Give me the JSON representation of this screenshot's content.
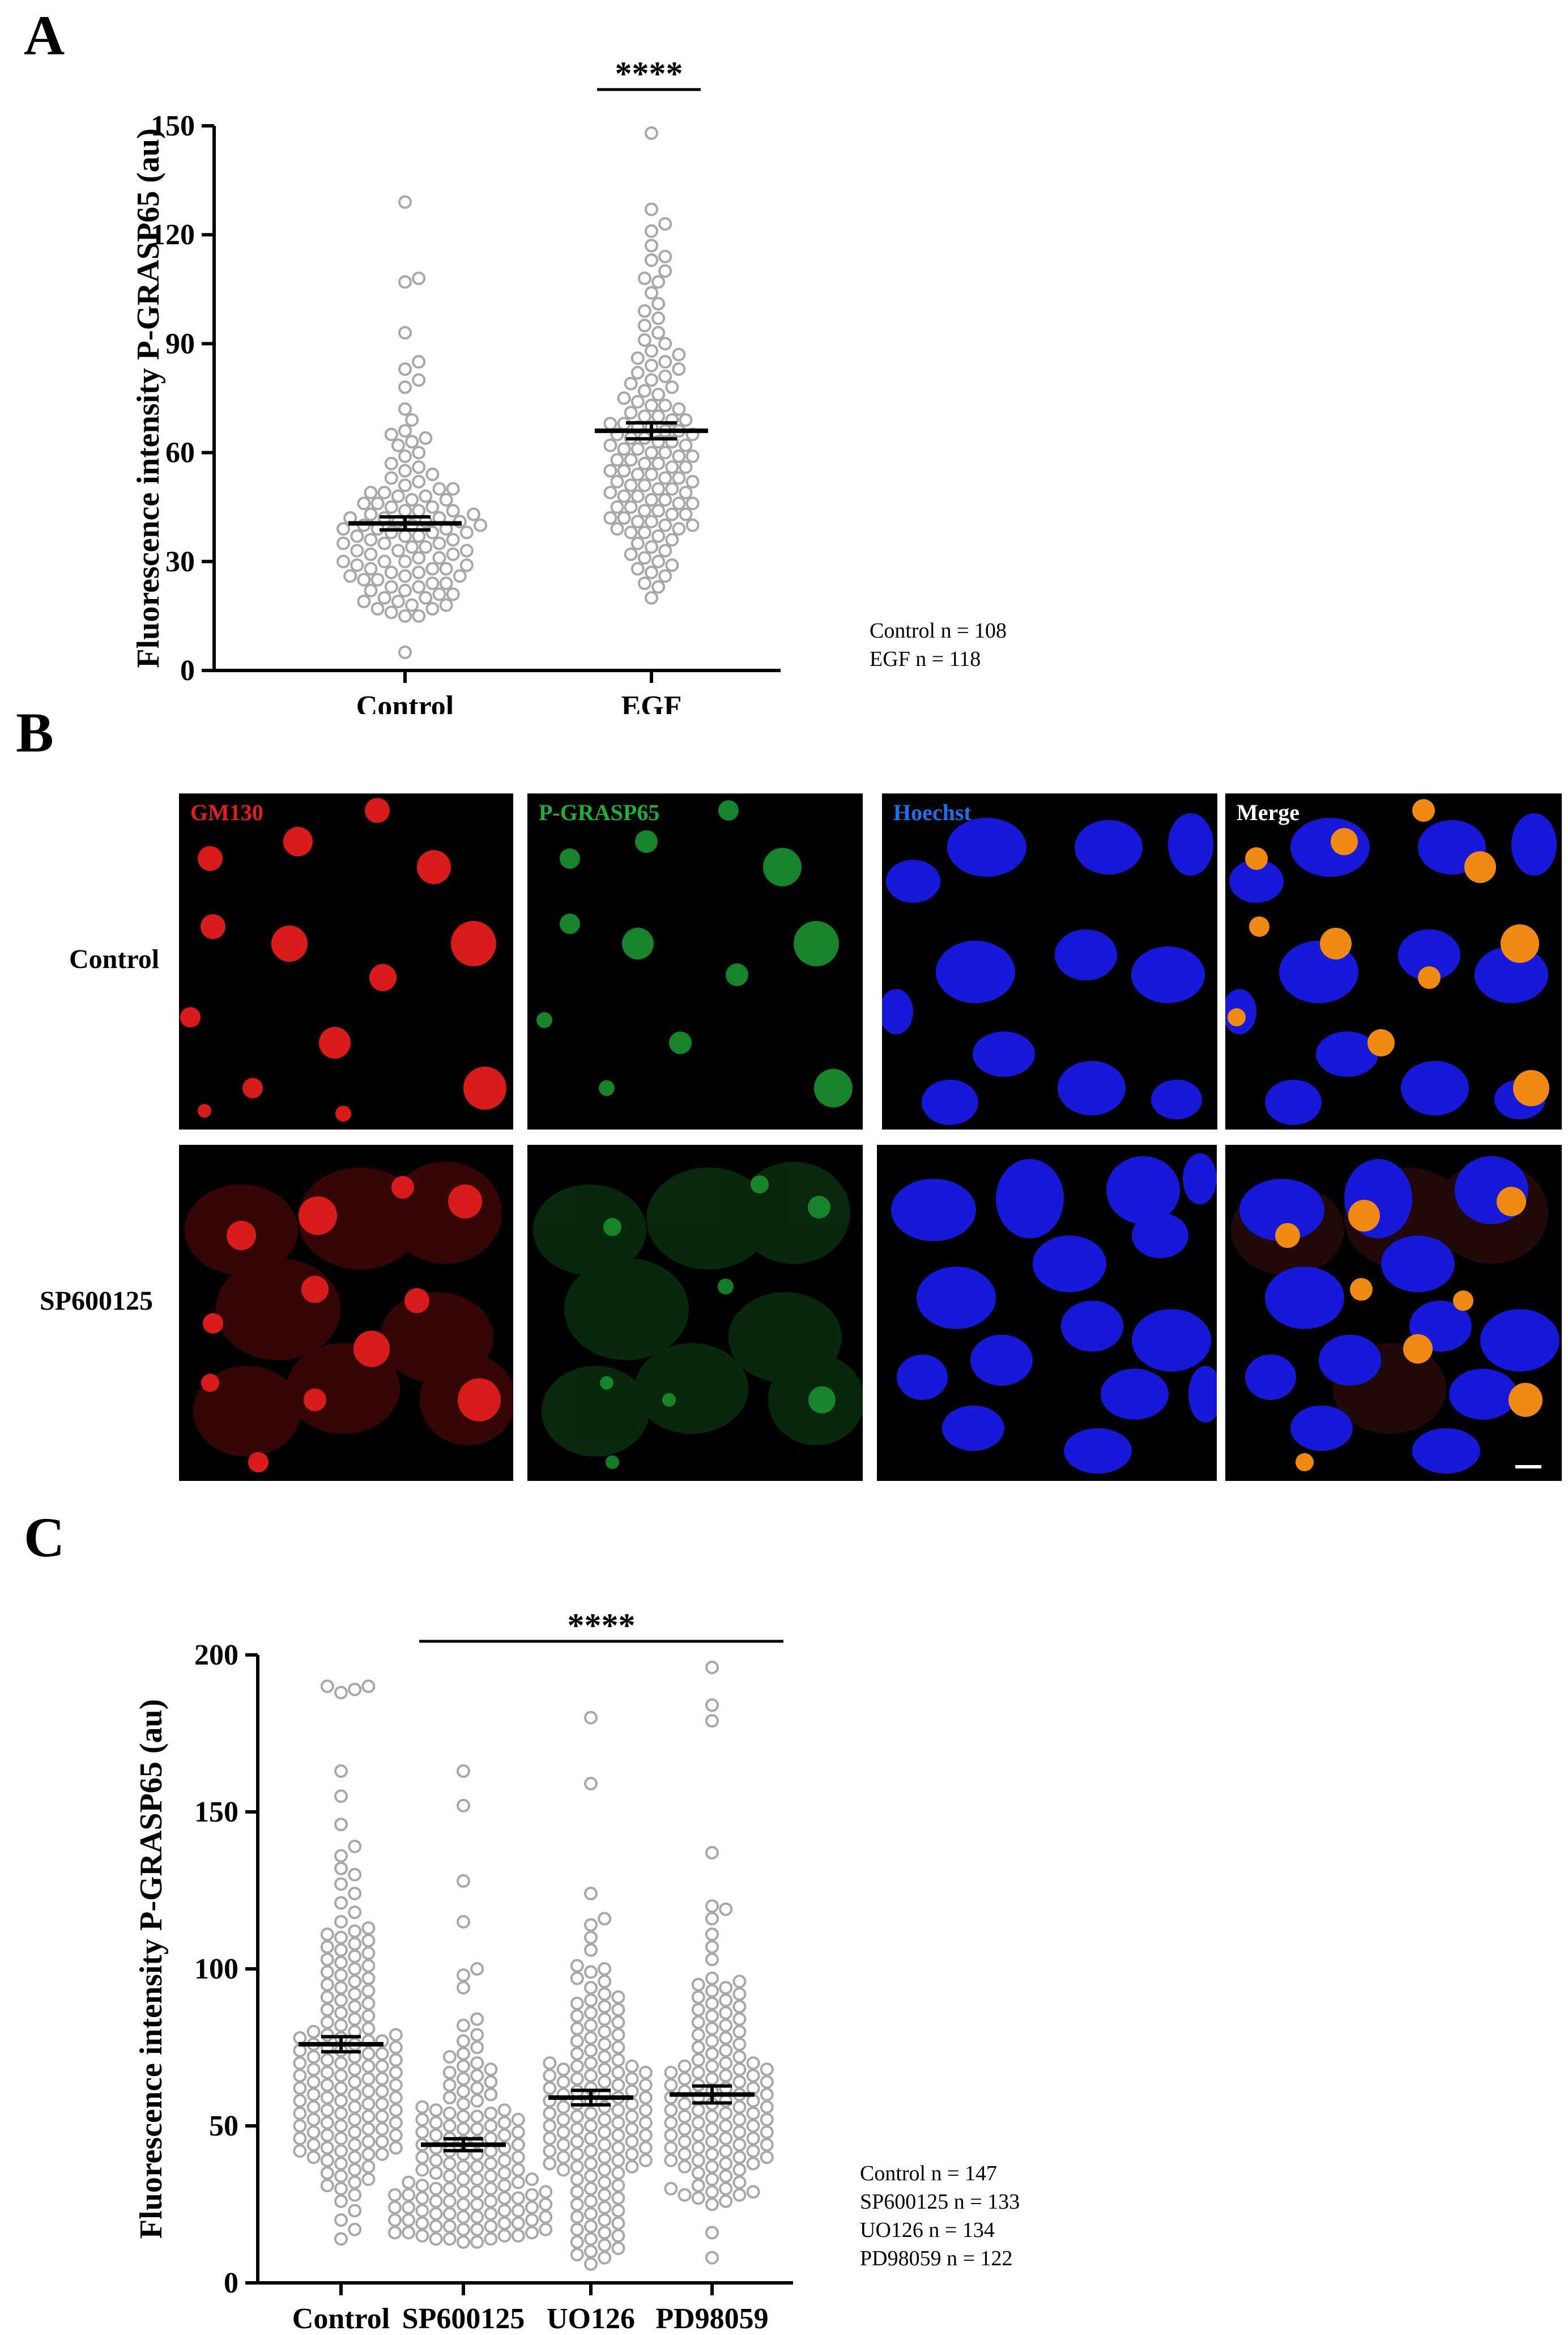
{
  "panels": {
    "a": "A",
    "b": "B",
    "c": "C"
  },
  "panel_a": {
    "n_labels": [
      "Control n = 108",
      "EGF n = 118"
    ],
    "significance": "****"
  },
  "panel_b": {
    "columns": [
      {
        "label": "GM130",
        "color": "#e02020"
      },
      {
        "label": "P-GRASP65",
        "color": "#1fae3a"
      },
      {
        "label": "Hoechst",
        "color": "#1e6fe8"
      },
      {
        "label": "Merge",
        "color": "#ffffff"
      }
    ],
    "rows": [
      "Control",
      "SP600125"
    ]
  },
  "panel_c": {
    "n_labels": [
      "Control n = 147",
      "SP600125 n = 133",
      "UO126 n = 134",
      "PD98059 n = 122"
    ],
    "significance": "****"
  },
  "chart_data": [
    {
      "type": "scatter",
      "ylabel": "Fluorescence intensity P-GRASP65 (au)",
      "categories": [
        "Control",
        "EGF"
      ],
      "ylim": [
        0,
        150
      ],
      "yticks": [
        0,
        30,
        60,
        90,
        120,
        150
      ],
      "series": [
        {
          "name": "Control",
          "n": 108,
          "mean": 40.5,
          "sem": 1.8,
          "values": [
            129,
            108,
            107,
            93,
            85,
            83,
            80,
            78,
            72,
            69,
            66,
            65,
            64,
            63,
            62,
            60,
            59,
            57,
            56,
            55,
            54,
            53,
            52,
            51,
            50,
            50,
            49,
            49,
            48,
            48,
            47,
            47,
            46,
            46,
            45,
            45,
            44,
            44,
            44,
            43,
            43,
            42,
            42,
            42,
            41,
            41,
            41,
            40,
            40,
            40,
            39,
            39,
            39,
            38,
            38,
            38,
            37,
            37,
            37,
            36,
            36,
            35,
            35,
            35,
            34,
            34,
            33,
            33,
            33,
            32,
            32,
            31,
            31,
            30,
            30,
            30,
            29,
            29,
            28,
            28,
            28,
            27,
            27,
            26,
            26,
            26,
            25,
            25,
            24,
            24,
            23,
            23,
            22,
            22,
            21,
            21,
            20,
            20,
            19,
            19,
            18,
            18,
            17,
            17,
            16,
            15,
            15,
            5
          ]
        },
        {
          "name": "EGF",
          "n": 118,
          "mean": 66,
          "sem": 2.2,
          "values": [
            148,
            127,
            123,
            121,
            117,
            114,
            113,
            110,
            108,
            107,
            104,
            101,
            99,
            97,
            95,
            93,
            91,
            90,
            88,
            87,
            86,
            85,
            84,
            83,
            82,
            81,
            80,
            79,
            78,
            77,
            76,
            75,
            74,
            73,
            73,
            72,
            71,
            70,
            70,
            69,
            69,
            68,
            68,
            67,
            67,
            66,
            66,
            65,
            65,
            64,
            64,
            63,
            63,
            62,
            62,
            61,
            61,
            60,
            60,
            59,
            59,
            58,
            58,
            57,
            57,
            56,
            56,
            55,
            55,
            54,
            54,
            53,
            53,
            52,
            52,
            51,
            51,
            50,
            50,
            49,
            49,
            48,
            48,
            47,
            47,
            46,
            46,
            45,
            45,
            44,
            44,
            43,
            43,
            42,
            42,
            41,
            41,
            40,
            40,
            39,
            39,
            38,
            38,
            37,
            36,
            35,
            34,
            33,
            32,
            31,
            30,
            29,
            28,
            27,
            26,
            24,
            23,
            20
          ]
        }
      ]
    },
    {
      "type": "scatter",
      "ylabel": "Fluorescence intensity P-GRASP65 (au)",
      "categories": [
        "Control",
        "SP600125",
        "UO126",
        "PD98059"
      ],
      "ylim": [
        0,
        200
      ],
      "yticks": [
        0,
        50,
        100,
        150,
        200
      ],
      "series": [
        {
          "name": "Control",
          "n": 147,
          "mean": 76,
          "sem": 2.4,
          "values": [
            190,
            190,
            189,
            188,
            163,
            155,
            146,
            139,
            136,
            132,
            130,
            127,
            124,
            121,
            118,
            115,
            113,
            112,
            111,
            110,
            109,
            108,
            107,
            106,
            105,
            104,
            103,
            102,
            101,
            100,
            99,
            98,
            97,
            96,
            95,
            94,
            93,
            92,
            91,
            90,
            89,
            88,
            87,
            86,
            85,
            84,
            83,
            82,
            81,
            80,
            80,
            79,
            79,
            78,
            78,
            77,
            77,
            76,
            76,
            75,
            75,
            74,
            74,
            73,
            73,
            72,
            72,
            71,
            71,
            70,
            70,
            69,
            69,
            68,
            68,
            67,
            67,
            66,
            66,
            65,
            65,
            64,
            64,
            63,
            63,
            62,
            62,
            61,
            61,
            60,
            60,
            59,
            59,
            58,
            58,
            57,
            57,
            56,
            56,
            55,
            55,
            54,
            54,
            53,
            53,
            52,
            52,
            51,
            51,
            50,
            50,
            49,
            49,
            48,
            48,
            47,
            47,
            46,
            46,
            45,
            45,
            44,
            44,
            43,
            43,
            42,
            42,
            41,
            41,
            40,
            40,
            39,
            38,
            37,
            36,
            35,
            34,
            33,
            32,
            31,
            30,
            28,
            26,
            23,
            20,
            17,
            14
          ]
        },
        {
          "name": "SP600125",
          "n": 133,
          "mean": 44,
          "sem": 1.9,
          "values": [
            163,
            152,
            128,
            115,
            100,
            98,
            94,
            84,
            82,
            79,
            77,
            75,
            73,
            72,
            70,
            69,
            68,
            67,
            66,
            65,
            64,
            63,
            62,
            61,
            60,
            59,
            58,
            57,
            56,
            55,
            55,
            54,
            54,
            53,
            53,
            52,
            52,
            51,
            51,
            50,
            50,
            49,
            49,
            48,
            48,
            47,
            47,
            46,
            46,
            45,
            45,
            44,
            44,
            43,
            43,
            42,
            42,
            41,
            41,
            40,
            40,
            39,
            39,
            38,
            38,
            37,
            37,
            36,
            36,
            35,
            35,
            34,
            34,
            33,
            33,
            33,
            32,
            32,
            31,
            31,
            30,
            30,
            30,
            29,
            29,
            29,
            28,
            28,
            28,
            27,
            27,
            27,
            26,
            26,
            26,
            25,
            25,
            25,
            24,
            24,
            24,
            23,
            23,
            23,
            22,
            22,
            22,
            21,
            21,
            21,
            20,
            20,
            20,
            19,
            19,
            19,
            18,
            18,
            18,
            17,
            17,
            17,
            16,
            16,
            16,
            15,
            15,
            15,
            14,
            14,
            14,
            13,
            13
          ]
        },
        {
          "name": "UO126",
          "n": 134,
          "mean": 59,
          "sem": 2.3,
          "values": [
            180,
            159,
            124,
            116,
            114,
            110,
            106,
            101,
            100,
            99,
            97,
            96,
            94,
            92,
            91,
            90,
            89,
            88,
            87,
            86,
            85,
            84,
            83,
            82,
            81,
            80,
            79,
            78,
            77,
            76,
            75,
            74,
            73,
            72,
            71,
            70,
            70,
            69,
            69,
            68,
            68,
            67,
            67,
            66,
            66,
            65,
            65,
            64,
            64,
            63,
            63,
            62,
            62,
            61,
            61,
            60,
            60,
            59,
            59,
            58,
            58,
            57,
            57,
            56,
            56,
            55,
            55,
            54,
            54,
            53,
            53,
            52,
            52,
            51,
            51,
            50,
            50,
            49,
            49,
            48,
            48,
            47,
            47,
            46,
            46,
            45,
            45,
            44,
            44,
            43,
            43,
            42,
            42,
            41,
            41,
            40,
            40,
            39,
            39,
            38,
            38,
            37,
            37,
            36,
            36,
            35,
            34,
            33,
            32,
            31,
            30,
            29,
            28,
            27,
            26,
            25,
            24,
            23,
            22,
            21,
            20,
            19,
            18,
            17,
            16,
            15,
            14,
            13,
            12,
            11,
            10,
            9,
            8,
            6
          ]
        },
        {
          "name": "PD98059",
          "n": 122,
          "mean": 60,
          "sem": 2.7,
          "values": [
            196,
            184,
            179,
            137,
            120,
            119,
            116,
            111,
            107,
            103,
            97,
            96,
            95,
            94,
            93,
            92,
            91,
            90,
            89,
            88,
            87,
            86,
            85,
            84,
            83,
            82,
            81,
            80,
            79,
            78,
            77,
            76,
            75,
            74,
            73,
            72,
            71,
            70,
            70,
            69,
            69,
            68,
            68,
            67,
            67,
            66,
            66,
            65,
            65,
            64,
            64,
            63,
            63,
            62,
            62,
            61,
            61,
            60,
            60,
            59,
            59,
            58,
            58,
            57,
            57,
            56,
            56,
            55,
            55,
            54,
            54,
            53,
            53,
            52,
            52,
            51,
            51,
            50,
            50,
            49,
            49,
            48,
            48,
            47,
            47,
            46,
            46,
            45,
            45,
            44,
            44,
            43,
            43,
            42,
            42,
            41,
            41,
            40,
            40,
            39,
            39,
            38,
            38,
            37,
            37,
            36,
            35,
            34,
            33,
            32,
            31,
            30,
            30,
            29,
            29,
            28,
            28,
            27,
            26,
            25,
            16,
            8
          ]
        }
      ]
    }
  ]
}
